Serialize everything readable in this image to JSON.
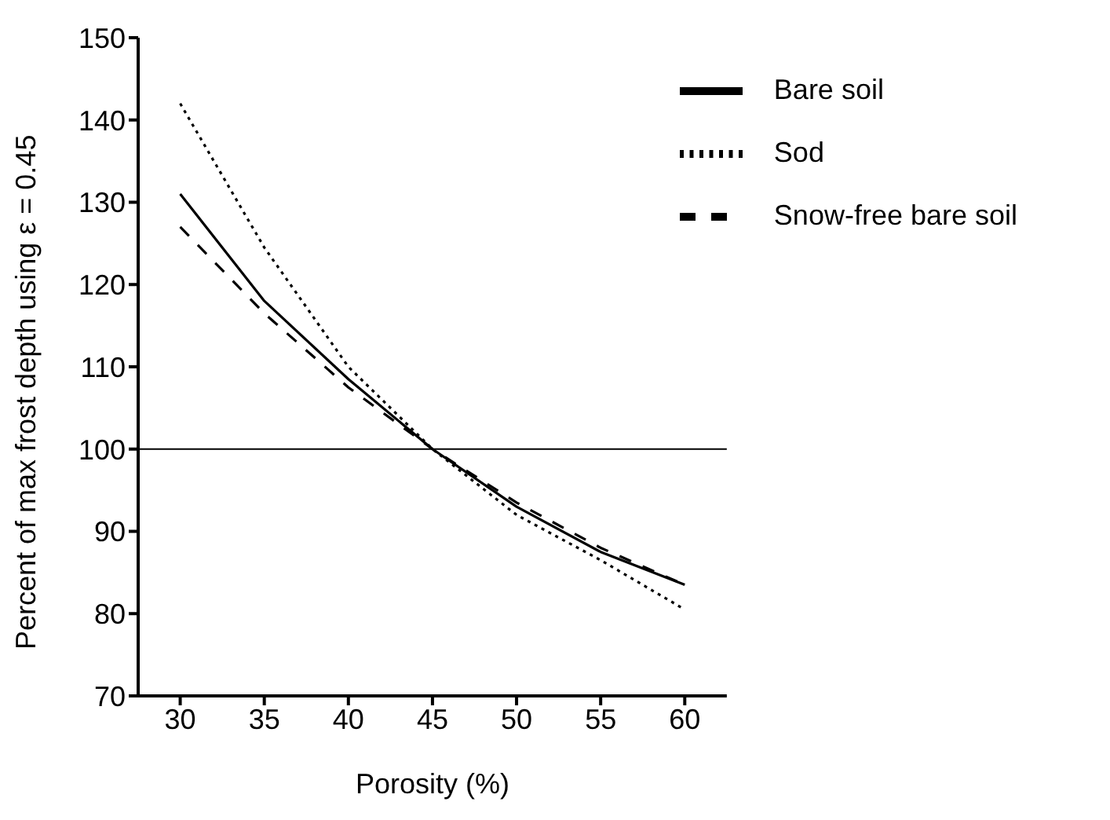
{
  "chart_data": {
    "type": "line",
    "xlabel": "Porosity (%)",
    "ylabel": "Percent of max frost depth using ε = 0.45",
    "x": [
      30,
      35,
      40,
      45,
      50,
      55,
      60
    ],
    "series": [
      {
        "name": "Bare soil",
        "color": "#000000",
        "line_style": "solid",
        "values": [
          131,
          118,
          108.5,
          100,
          93,
          87.5,
          83.5
        ]
      },
      {
        "name": "Sod",
        "color": "#000000",
        "line_style": "dotted",
        "values": [
          142,
          124.5,
          110,
          100,
          92,
          86.5,
          80.5
        ]
      },
      {
        "name": "Snow-free bare soil",
        "color": "#000000",
        "line_style": "dashed",
        "values": [
          127,
          116.5,
          107.5,
          100,
          93.5,
          88,
          83.5
        ]
      }
    ],
    "xlim": [
      27.5,
      62.5
    ],
    "xticks": [
      30,
      35,
      40,
      45,
      50,
      55,
      60
    ],
    "ylim": [
      70,
      150
    ],
    "yticks": [
      70,
      80,
      90,
      100,
      110,
      120,
      130,
      140,
      150
    ],
    "ref_lines": [
      {
        "axis": "y",
        "value": 100,
        "color": "#000000"
      }
    ],
    "legend": "top right",
    "grid": false,
    "marker": "none"
  }
}
